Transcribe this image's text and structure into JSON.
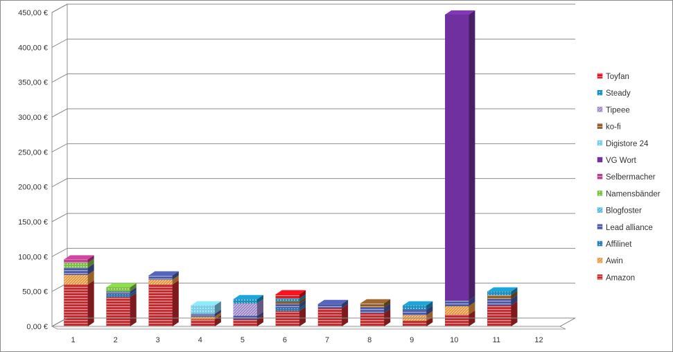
{
  "chart_data": {
    "type": "bar",
    "stacked": true,
    "three_d": true,
    "categories": [
      "1",
      "2",
      "3",
      "4",
      "5",
      "6",
      "7",
      "8",
      "9",
      "10",
      "11",
      "12"
    ],
    "ylim": [
      0,
      450
    ],
    "ytick_labels": [
      "0,00 €",
      "50,00 €",
      "100,00 €",
      "150,00 €",
      "200,00 €",
      "250,00 €",
      "300,00 €",
      "350,00 €",
      "400,00 €",
      "450,00 €"
    ],
    "grid": true,
    "legend_position": "right",
    "series": [
      {
        "name": "Amazon",
        "color": "#c0282c",
        "values": [
          60,
          42,
          60,
          10,
          10,
          22,
          26,
          19,
          8,
          17,
          30,
          0
        ]
      },
      {
        "name": "Awin",
        "color": "#e8963c",
        "values": [
          14,
          0,
          7,
          4,
          0,
          0,
          0,
          0,
          8,
          12,
          0,
          0
        ]
      },
      {
        "name": "Affilinet",
        "color": "#2b7fb0",
        "values": [
          0,
          4,
          0,
          0,
          0,
          4,
          0,
          0,
          0,
          0,
          0,
          0
        ]
      },
      {
        "name": "Lead alliance",
        "color": "#4a58a6",
        "values": [
          10,
          4,
          6,
          4,
          5,
          6,
          6,
          8,
          8,
          8,
          9,
          0
        ]
      },
      {
        "name": "Blogfoster",
        "color": "#4db3e0",
        "values": [
          0,
          0,
          0,
          0,
          0,
          0,
          0,
          0,
          0,
          0,
          0,
          0
        ]
      },
      {
        "name": "Namensbänder",
        "color": "#7dc242",
        "values": [
          7,
          6,
          0,
          0,
          0,
          0,
          0,
          0,
          0,
          0,
          0,
          0
        ]
      },
      {
        "name": "Selbermacher",
        "color": "#b83b8c",
        "values": [
          5,
          0,
          0,
          0,
          0,
          0,
          0,
          0,
          0,
          0,
          0,
          0
        ]
      },
      {
        "name": "VG Wort",
        "color": "#7030a0",
        "values": [
          0,
          0,
          0,
          0,
          0,
          0,
          0,
          0,
          0,
          410,
          0,
          0
        ]
      },
      {
        "name": "Digistore 24",
        "color": "#7ccde8",
        "values": [
          0,
          0,
          0,
          12,
          0,
          0,
          0,
          0,
          0,
          0,
          0,
          0
        ]
      },
      {
        "name": "ko-fi",
        "color": "#8b5a2b",
        "values": [
          0,
          0,
          0,
          0,
          0,
          4,
          0,
          6,
          0,
          0,
          6,
          0
        ]
      },
      {
        "name": "Tipeee",
        "color": "#9b86c8",
        "values": [
          0,
          0,
          0,
          0,
          18,
          0,
          0,
          0,
          0,
          0,
          0,
          0
        ]
      },
      {
        "name": "Steady",
        "color": "#1990bd",
        "values": [
          0,
          0,
          0,
          0,
          6,
          4,
          0,
          0,
          6,
          0,
          5,
          0
        ]
      },
      {
        "name": "Toyfan",
        "color": "#e0101a",
        "values": [
          0,
          0,
          0,
          0,
          0,
          6,
          0,
          0,
          0,
          0,
          0,
          0
        ]
      }
    ]
  }
}
